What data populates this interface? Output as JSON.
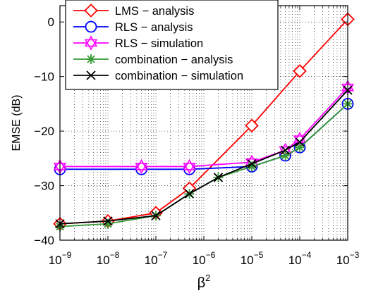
{
  "chart_data": {
    "type": "line",
    "xlabel": "β",
    "xlabel_sup": "2",
    "ylabel": "EMSE (dB)",
    "xscale": "log",
    "x": [
      1e-09,
      1e-08,
      1e-07,
      5e-07,
      1e-06,
      1e-05,
      5e-05,
      0.0001,
      0.001
    ],
    "xlim": [
      1e-09,
      0.001
    ],
    "ylim": [
      -40,
      3
    ],
    "grid": true,
    "legend_position": "top-center",
    "x_ticks": [
      {
        "exp": "−9",
        "value": 1e-09
      },
      {
        "exp": "−8",
        "value": 1e-08
      },
      {
        "exp": "−7",
        "value": 1e-07
      },
      {
        "exp": "−6",
        "value": 1e-06
      },
      {
        "exp": "−5",
        "value": 1e-05
      },
      {
        "exp": "−4",
        "value": 0.0001
      },
      {
        "exp": "−3",
        "value": 0.001
      }
    ],
    "y_ticks": [
      {
        "label": "0",
        "value": 0
      },
      {
        "label": "−10",
        "value": -10
      },
      {
        "label": "−20",
        "value": -20
      },
      {
        "label": "−30",
        "value": -30
      },
      {
        "label": "−40",
        "value": -40
      }
    ],
    "series": [
      {
        "name": "LMS − analysis",
        "color": "#ff0000",
        "marker": "diamond",
        "x": [
          1e-09,
          1e-08,
          1e-07,
          5e-07,
          1e-05,
          0.0001,
          0.001
        ],
        "values": [
          -37,
          -36.5,
          -35,
          -30.5,
          -19,
          -9,
          0.5
        ]
      },
      {
        "name": "RLS − analysis",
        "color": "#0000ff",
        "marker": "circle",
        "x": [
          1e-09,
          5e-08,
          5e-07,
          1e-05,
          5e-05,
          0.0001,
          0.001
        ],
        "values": [
          -27,
          -27,
          -27,
          -26.5,
          -24.5,
          -23,
          -15
        ]
      },
      {
        "name": "RLS − simulation",
        "color": "#ff00ff",
        "marker": "hexagram",
        "x": [
          1e-09,
          5e-08,
          5e-07,
          1e-05,
          5e-05,
          0.0001,
          0.001
        ],
        "values": [
          -26.5,
          -26.5,
          -26.5,
          -25.7,
          -23.5,
          -21.5,
          -12
        ]
      },
      {
        "name": "combination − analysis",
        "color": "#339933",
        "marker": "asterisk",
        "x": [
          1e-09,
          1e-08,
          1e-07,
          5e-07,
          2e-06,
          1e-05,
          5e-05,
          0.0001,
          0.001
        ],
        "values": [
          -37.5,
          -37,
          -35.5,
          -31.5,
          -28.5,
          -26.5,
          -24.5,
          -23,
          -15
        ]
      },
      {
        "name": "combination − simulation",
        "color": "#000000",
        "marker": "x",
        "x": [
          1e-09,
          1e-08,
          1e-07,
          5e-07,
          2e-06,
          1e-05,
          5e-05,
          0.0001,
          0.001
        ],
        "values": [
          -37,
          -36.5,
          -35.5,
          -31.5,
          -28.5,
          -26,
          -23.5,
          -22,
          -12.5
        ]
      }
    ]
  }
}
